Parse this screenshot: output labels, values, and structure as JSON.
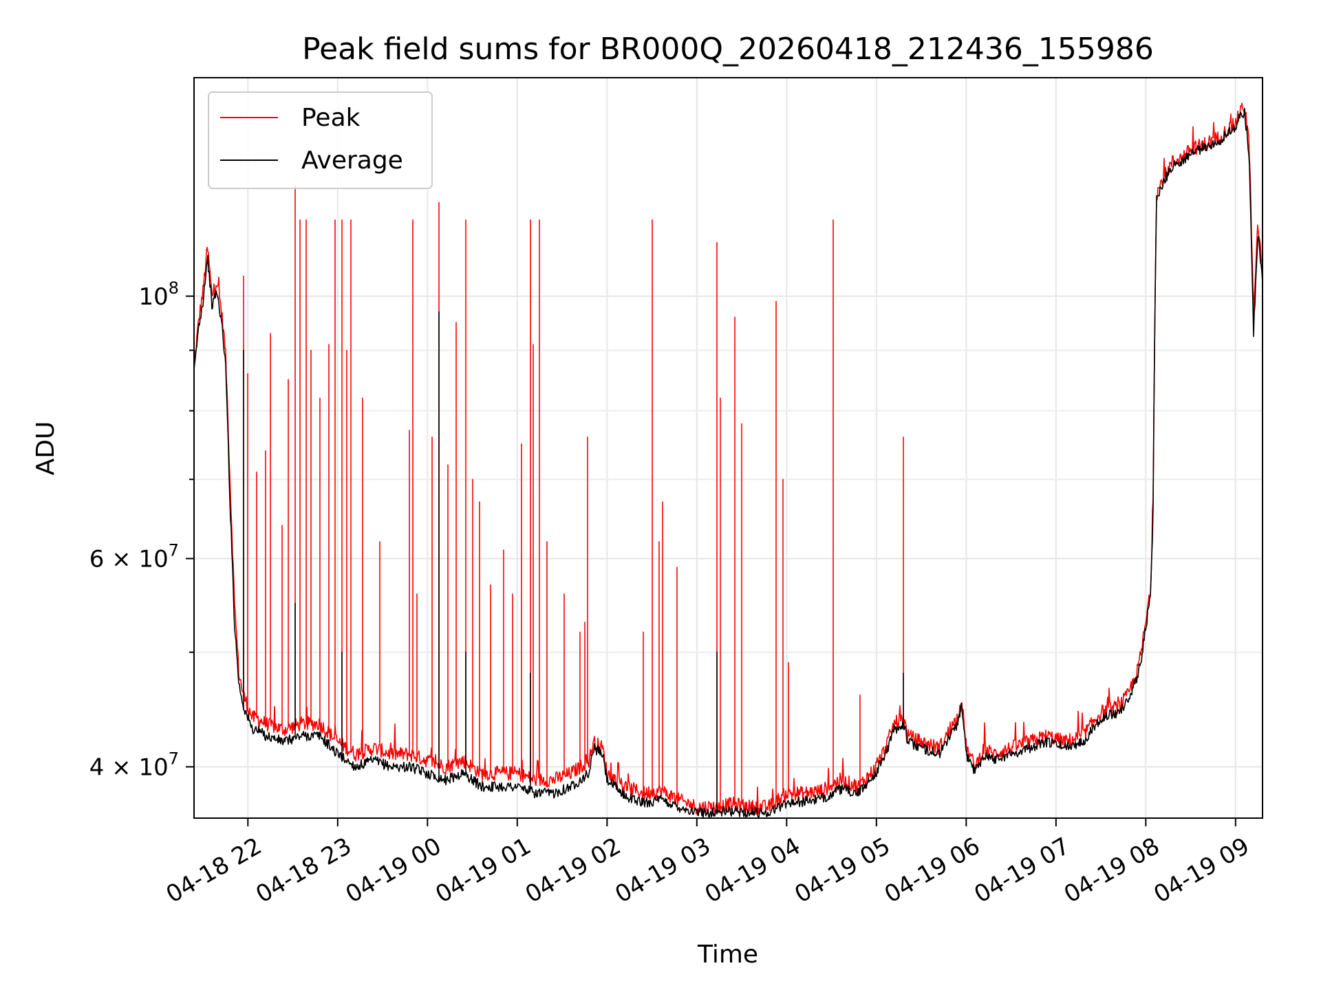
{
  "chart_data": {
    "type": "line",
    "title": "Peak field sums for BR000Q_20260418_212436_155986",
    "xlabel": "Time",
    "ylabel": "ADU",
    "yscale": "log",
    "grid": true,
    "legend_position": "top-left",
    "xlim": [
      21.4,
      33.3
    ],
    "ylim": [
      36200000,
      153000000
    ],
    "x_unit": "hours since 2026-04-18 00:00",
    "x_ticks": [
      {
        "value": 22,
        "label": "04-18 22"
      },
      {
        "value": 23,
        "label": "04-18 23"
      },
      {
        "value": 24,
        "label": "04-19 00"
      },
      {
        "value": 25,
        "label": "04-19 01"
      },
      {
        "value": 26,
        "label": "04-19 02"
      },
      {
        "value": 27,
        "label": "04-19 03"
      },
      {
        "value": 28,
        "label": "04-19 04"
      },
      {
        "value": 29,
        "label": "04-19 05"
      },
      {
        "value": 30,
        "label": "04-19 06"
      },
      {
        "value": 31,
        "label": "04-19 07"
      },
      {
        "value": 32,
        "label": "04-19 08"
      },
      {
        "value": 33,
        "label": "04-19 09"
      }
    ],
    "y_ticks_major": [
      {
        "value": 40000000,
        "base": "4",
        "mantissa_op": "×",
        "exp_base": "10",
        "exp": "7"
      },
      {
        "value": 60000000,
        "base": "6",
        "mantissa_op": "×",
        "exp_base": "10",
        "exp": "7"
      },
      {
        "value": 100000000,
        "base": "",
        "mantissa_op": "",
        "exp_base": "10",
        "exp": "8"
      }
    ],
    "y_ticks_minor": [
      50000000,
      70000000,
      80000000,
      90000000
    ],
    "series": [
      {
        "name": "Peak",
        "color": "#ff0000",
        "x": [
          21.4,
          21.45,
          21.5,
          21.55,
          21.6,
          21.65,
          21.7,
          21.75,
          21.8,
          21.85,
          21.9,
          21.95,
          22.0,
          22.05,
          22.1,
          22.2,
          22.4,
          22.6,
          22.8,
          23.0,
          23.2,
          23.4,
          23.6,
          23.8,
          24.0,
          24.2,
          24.4,
          24.6,
          24.8,
          25.0,
          25.2,
          25.4,
          25.6,
          25.8,
          25.85,
          25.95,
          26.0,
          26.2,
          26.4,
          26.6,
          26.8,
          27.0,
          27.2,
          27.4,
          27.6,
          27.8,
          28.0,
          28.2,
          28.4,
          28.6,
          28.8,
          29.0,
          29.1,
          29.2,
          29.3,
          29.35,
          29.5,
          29.7,
          29.9,
          29.95,
          30.0,
          30.1,
          30.2,
          30.3,
          30.5,
          30.7,
          30.9,
          31.1,
          31.3,
          31.4,
          31.5,
          31.7,
          31.8,
          31.9,
          31.95,
          32.0,
          32.05,
          32.08,
          32.1,
          32.12,
          32.2,
          32.3,
          32.4,
          32.5,
          32.6,
          32.7,
          32.8,
          32.9,
          33.0,
          33.05,
          33.1,
          33.15,
          33.2,
          33.25,
          33.3
        ],
        "values": [
          87000000,
          95000000,
          101000000,
          110000000,
          100000000,
          103000000,
          98000000,
          90000000,
          70000000,
          55000000,
          48000000,
          46000000,
          45000000,
          44000000,
          44000000,
          43500000,
          43000000,
          43500000,
          43500000,
          42000000,
          41000000,
          41500000,
          41000000,
          41000000,
          40500000,
          40000000,
          40500000,
          39500000,
          39500000,
          39500000,
          39000000,
          39000000,
          39500000,
          40500000,
          42000000,
          41500000,
          39500000,
          38500000,
          38000000,
          38200000,
          37500000,
          37000000,
          37000000,
          37200000,
          37000000,
          37000000,
          38000000,
          38000000,
          38200000,
          39000000,
          38500000,
          40000000,
          41500000,
          43500000,
          44000000,
          42500000,
          42000000,
          41500000,
          44000000,
          45500000,
          41500000,
          40000000,
          41500000,
          41000000,
          41500000,
          42000000,
          42500000,
          42000000,
          42500000,
          43500000,
          44500000,
          45000000,
          46000000,
          48000000,
          50000000,
          53000000,
          56000000,
          65000000,
          95000000,
          122000000,
          126000000,
          130000000,
          131000000,
          133000000,
          134000000,
          135000000,
          136000000,
          138000000,
          140000000,
          143000000,
          145000000,
          135000000,
          96000000,
          115000000,
          105000000
        ],
        "spikes": [
          {
            "x": 21.95,
            "value": 104000000
          },
          {
            "x": 22.0,
            "value": 86000000
          },
          {
            "x": 22.1,
            "value": 71000000
          },
          {
            "x": 22.2,
            "value": 74000000
          },
          {
            "x": 22.25,
            "value": 93000000
          },
          {
            "x": 22.38,
            "value": 64000000
          },
          {
            "x": 22.45,
            "value": 85000000
          },
          {
            "x": 22.53,
            "value": 124000000
          },
          {
            "x": 22.58,
            "value": 116000000
          },
          {
            "x": 22.65,
            "value": 116000000
          },
          {
            "x": 22.7,
            "value": 90000000
          },
          {
            "x": 22.8,
            "value": 82000000
          },
          {
            "x": 22.9,
            "value": 91000000
          },
          {
            "x": 22.97,
            "value": 116000000
          },
          {
            "x": 23.05,
            "value": 116000000
          },
          {
            "x": 23.1,
            "value": 90000000
          },
          {
            "x": 23.15,
            "value": 116000000
          },
          {
            "x": 23.28,
            "value": 82000000
          },
          {
            "x": 23.47,
            "value": 62000000
          },
          {
            "x": 23.8,
            "value": 77000000
          },
          {
            "x": 23.84,
            "value": 116000000
          },
          {
            "x": 23.88,
            "value": 56000000
          },
          {
            "x": 24.05,
            "value": 76000000
          },
          {
            "x": 24.13,
            "value": 120000000
          },
          {
            "x": 24.23,
            "value": 72000000
          },
          {
            "x": 24.32,
            "value": 95000000
          },
          {
            "x": 24.43,
            "value": 116000000
          },
          {
            "x": 24.5,
            "value": 70000000
          },
          {
            "x": 24.58,
            "value": 67000000
          },
          {
            "x": 24.7,
            "value": 57000000
          },
          {
            "x": 24.85,
            "value": 61000000
          },
          {
            "x": 24.95,
            "value": 56000000
          },
          {
            "x": 25.05,
            "value": 75000000
          },
          {
            "x": 25.15,
            "value": 116000000
          },
          {
            "x": 25.18,
            "value": 91000000
          },
          {
            "x": 25.25,
            "value": 116000000
          },
          {
            "x": 25.33,
            "value": 62000000
          },
          {
            "x": 25.52,
            "value": 56000000
          },
          {
            "x": 25.7,
            "value": 52000000
          },
          {
            "x": 25.75,
            "value": 53000000
          },
          {
            "x": 25.78,
            "value": 76000000
          },
          {
            "x": 26.4,
            "value": 52000000
          },
          {
            "x": 26.5,
            "value": 116000000
          },
          {
            "x": 26.58,
            "value": 62000000
          },
          {
            "x": 26.62,
            "value": 67000000
          },
          {
            "x": 26.78,
            "value": 59000000
          },
          {
            "x": 27.22,
            "value": 111000000
          },
          {
            "x": 27.26,
            "value": 82000000
          },
          {
            "x": 27.42,
            "value": 96000000
          },
          {
            "x": 27.5,
            "value": 78000000
          },
          {
            "x": 27.88,
            "value": 99000000
          },
          {
            "x": 27.96,
            "value": 70000000
          },
          {
            "x": 28.02,
            "value": 49000000
          },
          {
            "x": 28.52,
            "value": 116000000
          },
          {
            "x": 28.82,
            "value": 46000000
          },
          {
            "x": 29.3,
            "value": 76000000
          }
        ]
      },
      {
        "name": "Average",
        "color": "#000000",
        "x": [
          21.4,
          21.45,
          21.5,
          21.55,
          21.6,
          21.65,
          21.7,
          21.75,
          21.8,
          21.85,
          21.9,
          21.95,
          22.0,
          22.05,
          22.1,
          22.2,
          22.4,
          22.6,
          22.8,
          23.0,
          23.2,
          23.4,
          23.6,
          23.8,
          24.0,
          24.2,
          24.4,
          24.6,
          24.8,
          25.0,
          25.2,
          25.4,
          25.6,
          25.8,
          25.85,
          25.95,
          26.0,
          26.2,
          26.4,
          26.6,
          26.8,
          27.0,
          27.2,
          27.4,
          27.6,
          27.8,
          28.0,
          28.2,
          28.4,
          28.6,
          28.8,
          29.0,
          29.1,
          29.2,
          29.3,
          29.35,
          29.5,
          29.7,
          29.9,
          29.95,
          30.0,
          30.1,
          30.2,
          30.3,
          30.5,
          30.7,
          30.9,
          31.1,
          31.3,
          31.4,
          31.5,
          31.7,
          31.8,
          31.9,
          31.95,
          32.0,
          32.05,
          32.08,
          32.1,
          32.12,
          32.2,
          32.3,
          32.4,
          32.5,
          32.6,
          32.7,
          32.8,
          32.9,
          33.0,
          33.05,
          33.1,
          33.15,
          33.2,
          33.25,
          33.3
        ],
        "values": [
          86000000,
          94000000,
          99000000,
          108000000,
          98000000,
          101000000,
          96000000,
          88000000,
          67000000,
          53000000,
          47000000,
          45000000,
          44000000,
          43000000,
          43000000,
          42500000,
          42000000,
          42500000,
          42500000,
          41000000,
          40000000,
          40500000,
          40000000,
          40000000,
          39500000,
          39000000,
          39500000,
          38500000,
          38500000,
          38500000,
          38000000,
          38000000,
          38500000,
          39500000,
          41500000,
          41000000,
          39000000,
          37800000,
          37300000,
          37500000,
          37000000,
          36600000,
          36600000,
          36700000,
          36600000,
          36600000,
          37300000,
          37400000,
          37600000,
          38300000,
          38000000,
          39600000,
          41000000,
          43000000,
          43500000,
          42000000,
          41500000,
          41000000,
          43500000,
          45000000,
          41000000,
          39600000,
          41000000,
          40600000,
          41000000,
          41500000,
          42000000,
          41600000,
          42000000,
          43000000,
          44000000,
          44500000,
          45500000,
          47500000,
          49500000,
          52500000,
          55500000,
          64000000,
          94000000,
          121000000,
          125000000,
          129000000,
          130000000,
          132000000,
          133000000,
          134000000,
          135000000,
          137000000,
          139000000,
          142000000,
          143000000,
          132000000,
          93000000,
          113000000,
          103000000
        ],
        "spikes": [
          {
            "x": 21.95,
            "value": 90000000
          },
          {
            "x": 22.53,
            "value": 55000000
          },
          {
            "x": 23.05,
            "value": 50000000
          },
          {
            "x": 24.13,
            "value": 97000000
          },
          {
            "x": 24.43,
            "value": 50000000
          },
          {
            "x": 25.15,
            "value": 48000000
          },
          {
            "x": 27.22,
            "value": 50000000
          },
          {
            "x": 29.3,
            "value": 48000000
          }
        ]
      }
    ]
  }
}
